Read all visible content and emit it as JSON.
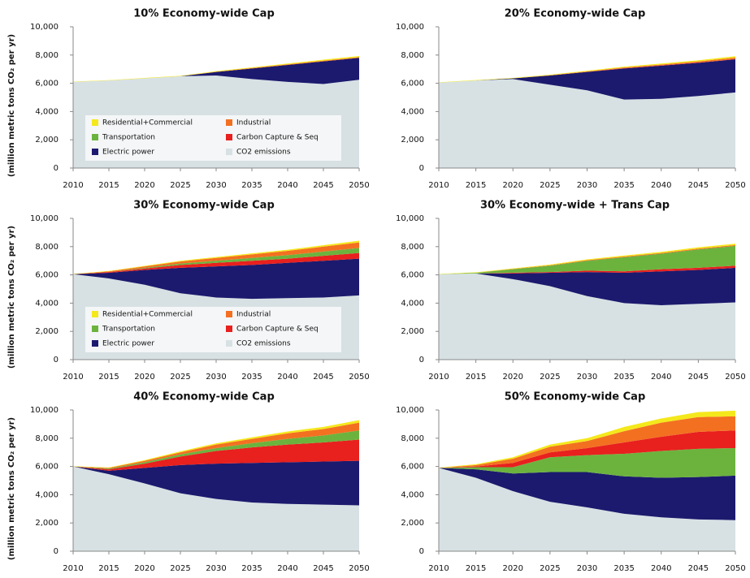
{
  "chart_data": [
    {
      "type": "area",
      "stacked": true,
      "title": "10% Economy-wide Cap",
      "y_label": "(million metric tons CO₂ per yr)",
      "legend": true,
      "x": [
        2010,
        2015,
        2020,
        2025,
        2030,
        2035,
        2040,
        2045,
        2050
      ],
      "xlim": [
        2010,
        2050
      ],
      "xticks": [
        2010,
        2015,
        2020,
        2025,
        2030,
        2035,
        2040,
        2045,
        2050
      ],
      "ylim": [
        0,
        10000
      ],
      "yticks": [
        0,
        {
          "value": 2000,
          "label": "2,000"
        },
        {
          "value": 4000,
          "label": "4,000"
        },
        {
          "value": 6000,
          "label": "6,000"
        },
        {
          "value": 8000,
          "label": "8,000"
        },
        {
          "value": 10000,
          "label": "10,000"
        }
      ],
      "series": [
        {
          "name": "CO2 emissions",
          "color": "#d7e1e4",
          "values": [
            6100,
            6200,
            6350,
            6500,
            6550,
            6300,
            6100,
            5950,
            6250
          ]
        },
        {
          "name": "Electric power",
          "color": "#1c1a6e",
          "values": [
            0,
            0,
            0,
            0,
            250,
            750,
            1200,
            1600,
            1550
          ]
        },
        {
          "name": "Carbon Capture & Seq",
          "color": "#e8201e",
          "values": [
            0,
            0,
            0,
            0,
            0,
            0,
            0,
            0,
            0
          ]
        },
        {
          "name": "Transportation",
          "color": "#6cb33e",
          "values": [
            0,
            0,
            0,
            0,
            0,
            0,
            0,
            0,
            0
          ]
        },
        {
          "name": "Industrial",
          "color": "#f37021",
          "values": [
            0,
            0,
            0,
            0,
            20,
            30,
            40,
            50,
            50
          ]
        },
        {
          "name": "Residential+Commercial",
          "color": "#f4e81c",
          "values": [
            20,
            20,
            30,
            30,
            40,
            50,
            60,
            70,
            80
          ]
        }
      ]
    },
    {
      "type": "area",
      "stacked": true,
      "title": "20% Economy-wide Cap",
      "legend": false,
      "x": [
        2010,
        2015,
        2020,
        2025,
        2030,
        2035,
        2040,
        2045,
        2050
      ],
      "xlim": [
        2010,
        2050
      ],
      "xticks": [
        2010,
        2015,
        2020,
        2025,
        2030,
        2035,
        2040,
        2045,
        2050
      ],
      "ylim": [
        0,
        10000
      ],
      "yticks": [
        0,
        {
          "value": 2000,
          "label": "2,000"
        },
        {
          "value": 4000,
          "label": "4,000"
        },
        {
          "value": 6000,
          "label": "6,000"
        },
        {
          "value": 8000,
          "label": "8,000"
        },
        {
          "value": 10000,
          "label": "10,000"
        }
      ],
      "series": [
        {
          "name": "CO2 emissions",
          "color": "#d7e1e4",
          "values": [
            6050,
            6200,
            6300,
            5900,
            5500,
            4850,
            4900,
            5100,
            5350
          ]
        },
        {
          "name": "Electric power",
          "color": "#1c1a6e",
          "values": [
            0,
            0,
            50,
            650,
            1300,
            2200,
            2350,
            2350,
            2350
          ]
        },
        {
          "name": "Carbon Capture & Seq",
          "color": "#e8201e",
          "values": [
            0,
            0,
            0,
            0,
            10,
            20,
            20,
            20,
            20
          ]
        },
        {
          "name": "Transportation",
          "color": "#6cb33e",
          "values": [
            0,
            0,
            0,
            0,
            0,
            0,
            0,
            0,
            0
          ]
        },
        {
          "name": "Industrial",
          "color": "#f37021",
          "values": [
            0,
            0,
            0,
            20,
            30,
            50,
            60,
            80,
            100
          ]
        },
        {
          "name": "Residential+Commercial",
          "color": "#f4e81c",
          "values": [
            20,
            30,
            30,
            40,
            50,
            60,
            70,
            80,
            100
          ]
        }
      ]
    },
    {
      "type": "area",
      "stacked": true,
      "title": "30% Economy-wide Cap",
      "y_label": "(million metric tons CO₂ per yr)",
      "legend": true,
      "x": [
        2010,
        2015,
        2020,
        2025,
        2030,
        2035,
        2040,
        2045,
        2050
      ],
      "xlim": [
        2010,
        2050
      ],
      "xticks": [
        2010,
        2015,
        2020,
        2025,
        2030,
        2035,
        2040,
        2045,
        2050
      ],
      "ylim": [
        0,
        10000
      ],
      "yticks": [
        0,
        {
          "value": 2000,
          "label": "2,000"
        },
        {
          "value": 4000,
          "label": "4,000"
        },
        {
          "value": 6000,
          "label": "6,000"
        },
        {
          "value": 8000,
          "label": "8,000"
        },
        {
          "value": 10000,
          "label": "10,000"
        }
      ],
      "series": [
        {
          "name": "CO2 emissions",
          "color": "#d7e1e4",
          "values": [
            6050,
            5750,
            5300,
            4700,
            4400,
            4300,
            4350,
            4400,
            4550
          ]
        },
        {
          "name": "Electric power",
          "color": "#1c1a6e",
          "values": [
            0,
            400,
            1050,
            1800,
            2200,
            2400,
            2500,
            2600,
            2600
          ]
        },
        {
          "name": "Carbon Capture & Seq",
          "color": "#e8201e",
          "values": [
            0,
            50,
            100,
            200,
            250,
            300,
            300,
            350,
            400
          ]
        },
        {
          "name": "Transportation",
          "color": "#6cb33e",
          "values": [
            0,
            0,
            50,
            100,
            150,
            200,
            250,
            300,
            350
          ]
        },
        {
          "name": "Industrial",
          "color": "#f37021",
          "values": [
            0,
            50,
            100,
            150,
            200,
            250,
            300,
            350,
            400
          ]
        },
        {
          "name": "Residential+Commercial",
          "color": "#f4e81c",
          "values": [
            20,
            30,
            40,
            50,
            60,
            70,
            80,
            100,
            120
          ]
        }
      ]
    },
    {
      "type": "area",
      "stacked": true,
      "title": "30% Economy-wide + Trans Cap",
      "legend": false,
      "x": [
        2010,
        2015,
        2020,
        2025,
        2030,
        2035,
        2040,
        2045,
        2050
      ],
      "xlim": [
        2010,
        2050
      ],
      "xticks": [
        2010,
        2015,
        2020,
        2025,
        2030,
        2035,
        2040,
        2045,
        2050
      ],
      "ylim": [
        0,
        10000
      ],
      "yticks": [
        0,
        {
          "value": 2000,
          "label": "2,000"
        },
        {
          "value": 4000,
          "label": "4,000"
        },
        {
          "value": 6000,
          "label": "6,000"
        },
        {
          "value": 8000,
          "label": "8,000"
        },
        {
          "value": 10000,
          "label": "10,000"
        }
      ],
      "series": [
        {
          "name": "CO2 emissions",
          "color": "#d7e1e4",
          "values": [
            6050,
            6100,
            5700,
            5200,
            4500,
            4000,
            3850,
            3950,
            4050
          ]
        },
        {
          "name": "Electric power",
          "color": "#1c1a6e",
          "values": [
            0,
            0,
            400,
            950,
            1700,
            2150,
            2400,
            2400,
            2450
          ]
        },
        {
          "name": "Carbon Capture & Seq",
          "color": "#e8201e",
          "values": [
            0,
            0,
            50,
            50,
            100,
            100,
            150,
            150,
            150
          ]
        },
        {
          "name": "Transportation",
          "color": "#6cb33e",
          "values": [
            0,
            50,
            250,
            450,
            700,
            1000,
            1100,
            1300,
            1400
          ]
        },
        {
          "name": "Industrial",
          "color": "#f37021",
          "values": [
            0,
            0,
            20,
            30,
            40,
            50,
            50,
            60,
            60
          ]
        },
        {
          "name": "Residential+Commercial",
          "color": "#f4e81c",
          "values": [
            20,
            30,
            40,
            50,
            60,
            70,
            80,
            90,
            100
          ]
        }
      ]
    },
    {
      "type": "area",
      "stacked": true,
      "title": "40% Economy-wide Cap",
      "y_label": "(million metric tons CO₂ per yr)",
      "legend": false,
      "x": [
        2010,
        2015,
        2020,
        2025,
        2030,
        2035,
        2040,
        2045,
        2050
      ],
      "xlim": [
        2010,
        2050
      ],
      "xticks": [
        2010,
        2015,
        2020,
        2025,
        2030,
        2035,
        2040,
        2045,
        2050
      ],
      "ylim": [
        0,
        10000
      ],
      "yticks": [
        0,
        {
          "value": 2000,
          "label": "2,000"
        },
        {
          "value": 4000,
          "label": "4,000"
        },
        {
          "value": 6000,
          "label": "6,000"
        },
        {
          "value": 8000,
          "label": "8,000"
        },
        {
          "value": 10000,
          "label": "10,000"
        }
      ],
      "series": [
        {
          "name": "CO2 emissions",
          "color": "#d7e1e4",
          "values": [
            6000,
            5450,
            4800,
            4100,
            3700,
            3450,
            3350,
            3300,
            3250
          ]
        },
        {
          "name": "Electric power",
          "color": "#1c1a6e",
          "values": [
            0,
            250,
            1100,
            2000,
            2500,
            2800,
            2950,
            3050,
            3150
          ]
        },
        {
          "name": "Carbon Capture & Seq",
          "color": "#e8201e",
          "values": [
            0,
            100,
            300,
            600,
            900,
            1100,
            1250,
            1350,
            1500
          ]
        },
        {
          "name": "Transportation",
          "color": "#6cb33e",
          "values": [
            0,
            50,
            100,
            150,
            200,
            300,
            400,
            500,
            650
          ]
        },
        {
          "name": "Industrial",
          "color": "#f37021",
          "values": [
            0,
            50,
            100,
            150,
            250,
            300,
            400,
            450,
            550
          ]
        },
        {
          "name": "Residential+Commercial",
          "color": "#f4e81c",
          "values": [
            20,
            30,
            50,
            70,
            90,
            110,
            130,
            150,
            180
          ]
        }
      ]
    },
    {
      "type": "area",
      "stacked": true,
      "title": "50% Economy-wide Cap",
      "legend": false,
      "x": [
        2010,
        2015,
        2020,
        2025,
        2030,
        2035,
        2040,
        2045,
        2050
      ],
      "xlim": [
        2010,
        2050
      ],
      "xticks": [
        2010,
        2015,
        2020,
        2025,
        2030,
        2035,
        2040,
        2045,
        2050
      ],
      "ylim": [
        0,
        10000
      ],
      "yticks": [
        0,
        {
          "value": 2000,
          "label": "2,000"
        },
        {
          "value": 4000,
          "label": "4,000"
        },
        {
          "value": 6000,
          "label": "6,000"
        },
        {
          "value": 8000,
          "label": "8,000"
        },
        {
          "value": 10000,
          "label": "10,000"
        }
      ],
      "series": [
        {
          "name": "CO2 emissions",
          "color": "#d7e1e4",
          "values": [
            5900,
            5200,
            4250,
            3500,
            3100,
            2650,
            2400,
            2250,
            2200
          ]
        },
        {
          "name": "Electric power",
          "color": "#1c1a6e",
          "values": [
            0,
            600,
            1250,
            2100,
            2500,
            2650,
            2800,
            3000,
            3150
          ]
        },
        {
          "name": "Transportation",
          "color": "#6cb33e",
          "values": [
            0,
            150,
            450,
            1050,
            1200,
            1600,
            1900,
            2000,
            1950
          ]
        },
        {
          "name": "Carbon Capture & Seq",
          "color": "#e8201e",
          "values": [
            0,
            50,
            300,
            350,
            500,
            800,
            1000,
            1200,
            1250
          ]
        },
        {
          "name": "Industrial",
          "color": "#f37021",
          "values": [
            0,
            100,
            300,
            400,
            500,
            800,
            1000,
            1050,
            1000
          ]
        },
        {
          "name": "Residential+Commercial",
          "color": "#f4e81c",
          "values": [
            20,
            60,
            100,
            150,
            200,
            300,
            300,
            350,
            400
          ]
        }
      ]
    }
  ]
}
